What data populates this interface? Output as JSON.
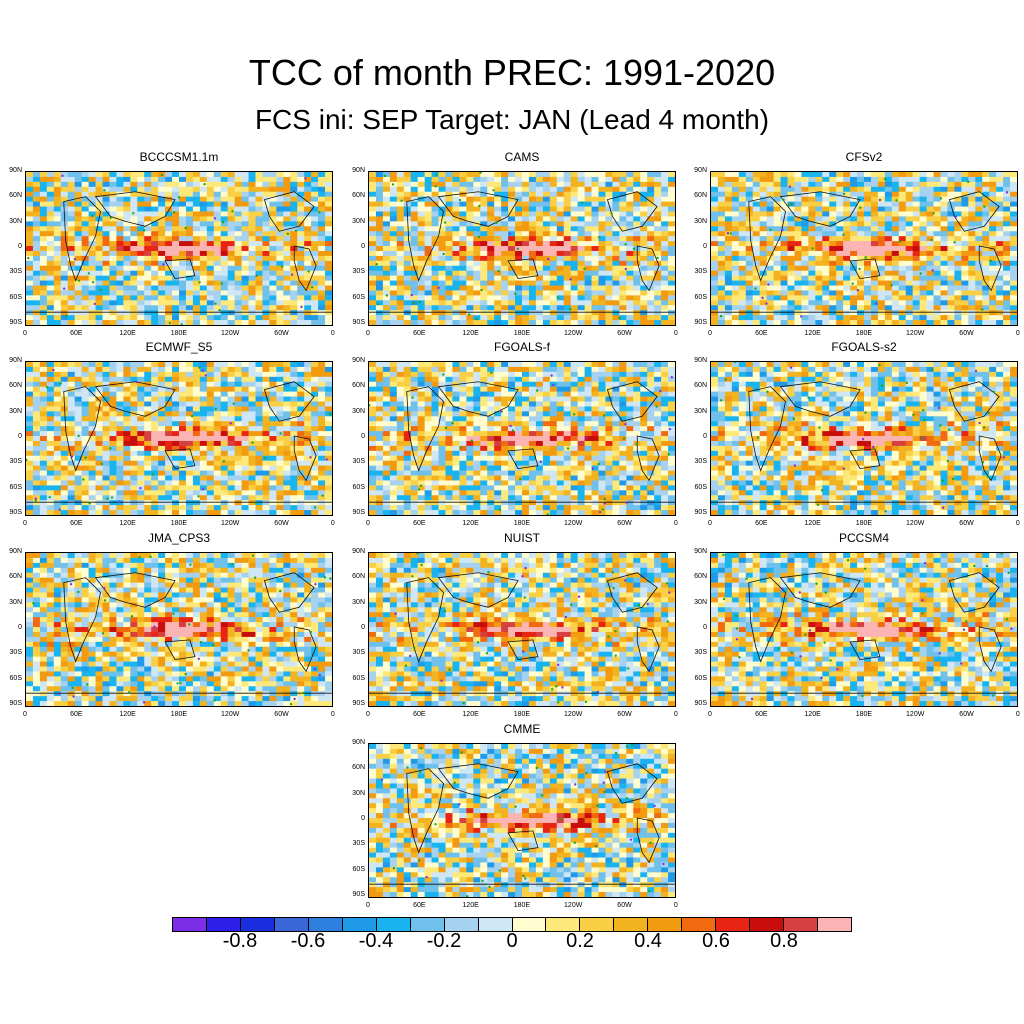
{
  "title": "TCC of month PREC: 1991-2020",
  "subtitle": "FCS ini: SEP    Target: JAN (Lead 4 month)",
  "panels": [
    {
      "name": "BCCCSM1.1m"
    },
    {
      "name": "CAMS"
    },
    {
      "name": "CFSv2"
    },
    {
      "name": "ECMWF_S5"
    },
    {
      "name": "FGOALS-f"
    },
    {
      "name": "FGOALS-s2"
    },
    {
      "name": "JMA_CPS3"
    },
    {
      "name": "NUIST"
    },
    {
      "name": "PCCSM4"
    },
    {
      "name": "CMME"
    }
  ],
  "lat_labels": [
    "90N",
    "60N",
    "30N",
    "0",
    "30S",
    "60S",
    "90S"
  ],
  "lon_labels": [
    "0",
    "60E",
    "120E",
    "180E",
    "120W",
    "60W",
    "0"
  ],
  "colorbar": {
    "colors": [
      "#7b2ee6",
      "#2d1ee8",
      "#1a2ee0",
      "#3a66d8",
      "#2f7fe0",
      "#1f9ae8",
      "#19b4ef",
      "#6fc0ea",
      "#a6d2ef",
      "#cfe6f5",
      "#fffccf",
      "#fde97a",
      "#f9cf45",
      "#f3b21f",
      "#f29a10",
      "#f26a0f",
      "#e82412",
      "#c80d0d",
      "#d64040",
      "#fbb4b4"
    ],
    "labels": [
      "-0.8",
      "-0.6",
      "-0.4",
      "-0.2",
      "0",
      "0.2",
      "0.4",
      "0.6",
      "0.8"
    ]
  }
}
